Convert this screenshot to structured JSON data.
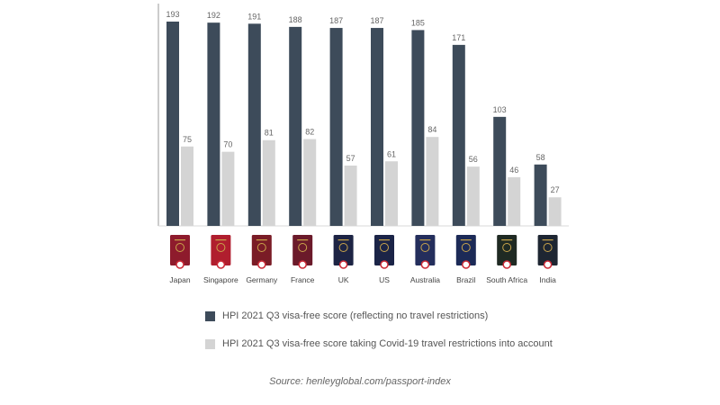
{
  "chart_data": {
    "type": "bar",
    "categories": [
      "Japan",
      "Singapore",
      "Germany",
      "France",
      "UK",
      "US",
      "Australia",
      "Brazil",
      "South Africa",
      "India"
    ],
    "series": [
      {
        "name": "HPI 2021 Q3 visa-free score (reflecting no travel restrictions)",
        "color": "#3d4b5a",
        "values": [
          193,
          192,
          191,
          188,
          187,
          187,
          185,
          171,
          103,
          58
        ]
      },
      {
        "name": "HPI 2021 Q3 visa-free score taking Covid-19 travel restrictions into account",
        "color": "#d4d4d4",
        "values": [
          75,
          70,
          81,
          82,
          57,
          61,
          84,
          56,
          46,
          27
        ]
      }
    ],
    "ylim": [
      0,
      200
    ],
    "grid": false,
    "legend_placement": "bottom",
    "passport_colors": [
      "#8e1b2c",
      "#b01e2e",
      "#7a1c26",
      "#6b1a2a",
      "#1d2444",
      "#1b2447",
      "#242e5c",
      "#1c2a57",
      "#1f2a23",
      "#1e2632"
    ],
    "passport_icons": [
      "japan-passport-icon",
      "singapore-passport-icon",
      "germany-passport-icon",
      "france-passport-icon",
      "uk-passport-icon",
      "us-passport-icon",
      "australia-passport-icon",
      "brazil-passport-icon",
      "south-africa-passport-icon",
      "india-passport-icon"
    ]
  },
  "legend": {
    "items": [
      {
        "label": "HPI 2021 Q3 visa-free score (reflecting no travel restrictions)"
      },
      {
        "label": "HPI 2021 Q3 visa-free score taking Covid-19 travel restrictions into account"
      }
    ]
  },
  "source": "Source: henleyglobal.com/passport-index"
}
